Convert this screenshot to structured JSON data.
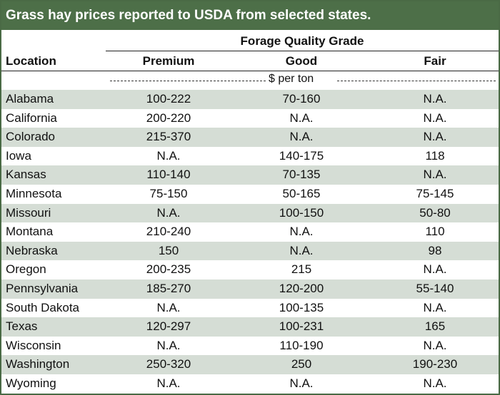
{
  "title": "Grass hay prices reported to USDA from selected states.",
  "group_header": "Forage Quality Grade",
  "columns": {
    "location": "Location",
    "premium": "Premium",
    "good": "Good",
    "fair": "Fair"
  },
  "units": "$ per ton",
  "colors": {
    "title_bar": "#4d6f48",
    "row_shade": "#d5ddd5",
    "border": "#4a6a45"
  },
  "chart_data": {
    "type": "table",
    "title": "Grass hay prices reported to USDA from selected states.",
    "header_group": "Forage Quality Grade",
    "columns": [
      "Location",
      "Premium",
      "Good",
      "Fair"
    ],
    "units": "$ per ton",
    "rows": [
      {
        "location": "Alabama",
        "premium": "100-222",
        "good": "70-160",
        "fair": "N.A."
      },
      {
        "location": "California",
        "premium": "200-220",
        "good": "N.A.",
        "fair": "N.A."
      },
      {
        "location": "Colorado",
        "premium": "215-370",
        "good": "N.A.",
        "fair": "N.A."
      },
      {
        "location": "Iowa",
        "premium": "N.A.",
        "good": "140-175",
        "fair": "118"
      },
      {
        "location": "Kansas",
        "premium": "110-140",
        "good": "70-135",
        "fair": "N.A."
      },
      {
        "location": "Minnesota",
        "premium": "75-150",
        "good": "50-165",
        "fair": "75-145"
      },
      {
        "location": "Missouri",
        "premium": "N.A.",
        "good": "100-150",
        "fair": "50-80"
      },
      {
        "location": "Montana",
        "premium": "210-240",
        "good": "N.A.",
        "fair": "110"
      },
      {
        "location": "Nebraska",
        "premium": "150",
        "good": "N.A.",
        "fair": "98"
      },
      {
        "location": "Oregon",
        "premium": "200-235",
        "good": "215",
        "fair": "N.A."
      },
      {
        "location": "Pennsylvania",
        "premium": "185-270",
        "good": "120-200",
        "fair": "55-140"
      },
      {
        "location": "South Dakota",
        "premium": "N.A.",
        "good": "100-135",
        "fair": "N.A."
      },
      {
        "location": "Texas",
        "premium": "120-297",
        "good": "100-231",
        "fair": "165"
      },
      {
        "location": "Wisconsin",
        "premium": "N.A.",
        "good": "110-190",
        "fair": "N.A."
      },
      {
        "location": "Washington",
        "premium": "250-320",
        "good": "250",
        "fair": "190-230"
      },
      {
        "location": "Wyoming",
        "premium": "N.A.",
        "good": "N.A.",
        "fair": "N.A."
      }
    ]
  }
}
